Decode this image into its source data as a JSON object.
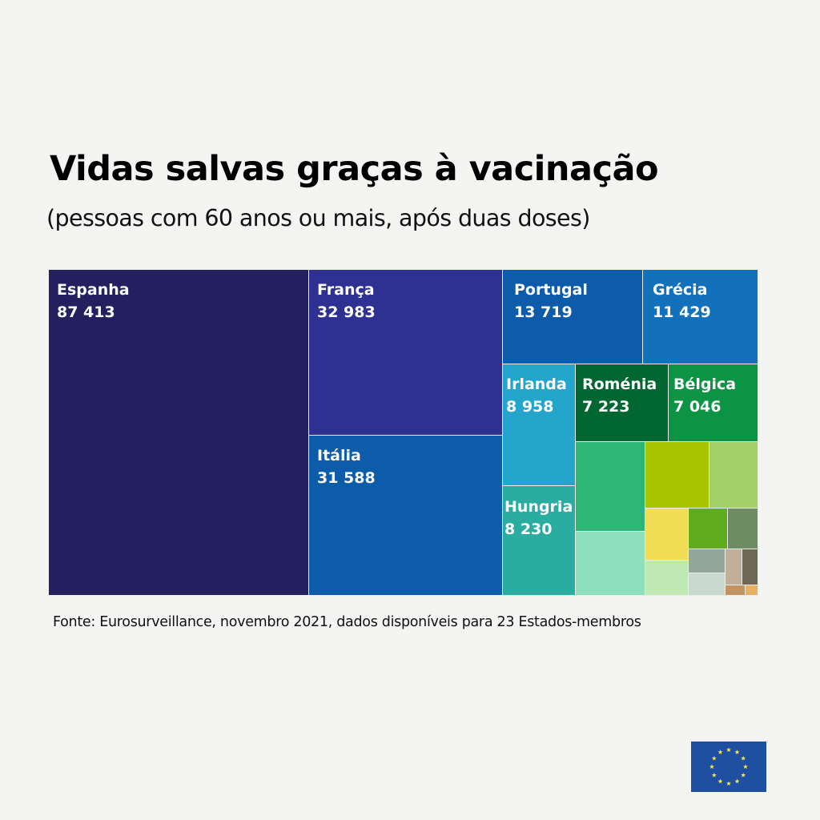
{
  "chart_data": {
    "type": "treemap",
    "title": "Vidas salvas graças à vacinação",
    "subtitle": "(pessoas com 60 anos ou mais, após duas doses)",
    "source": "Fonte: Eurosurveillance, novembro 2021, dados disponíveis para 23 Estados-membros",
    "items": [
      {
        "label": "Espanha",
        "value_text": "87 413",
        "value": 87413,
        "color": "#24205f"
      },
      {
        "label": "França",
        "value_text": "32 983",
        "value": 32983,
        "color": "#2f3192"
      },
      {
        "label": "Itália",
        "value_text": "31 588",
        "value": 31588,
        "color": "#0c5caa"
      },
      {
        "label": "Portugal",
        "value_text": "13 719",
        "value": 13719,
        "color": "#0e5ba9"
      },
      {
        "label": "Grécia",
        "value_text": "11 429",
        "value": 11429,
        "color": "#1370bb"
      },
      {
        "label": "Irlanda",
        "value_text": "8 958",
        "value": 8958,
        "color": "#23a5cc"
      },
      {
        "label": "Roménia",
        "value_text": "7 223",
        "value": 7223,
        "color": "#006732"
      },
      {
        "label": "Bélgica",
        "value_text": "7 046",
        "value": 7046,
        "color": "#0b9444"
      },
      {
        "label": "Hungria",
        "value_text": "8 230",
        "value": 8230,
        "color": "#2aada0"
      }
    ],
    "unlabeled_colors": [
      "#2db675",
      "#8ee0bd",
      "#a9c500",
      "#a4d06a",
      "#f1dc55",
      "#bfe8b4",
      "#5fad1e",
      "#6d8c63",
      "#92a79a",
      "#c9d9cf",
      "#c0b09a",
      "#706654",
      "#c39463",
      "#e8b062"
    ]
  },
  "logo": {
    "name": "EU flag",
    "color": "#1f4fa0",
    "star_color": "#f6e84d"
  }
}
